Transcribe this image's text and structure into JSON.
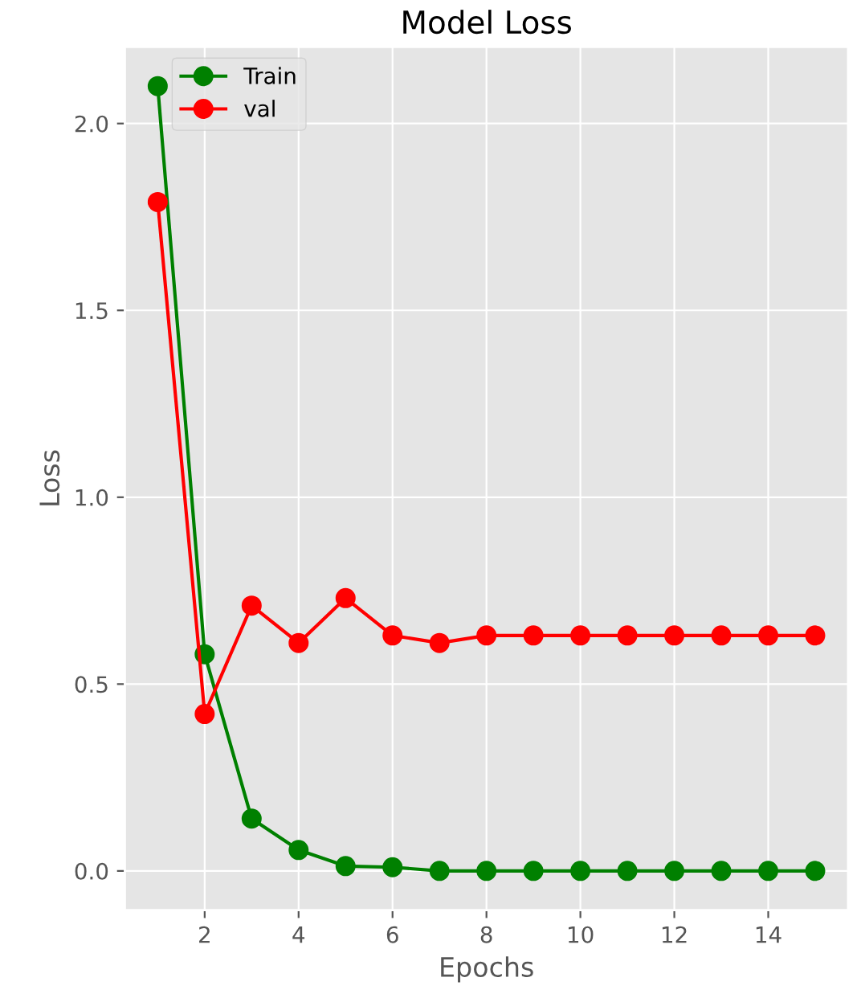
{
  "chart_data": {
    "type": "line",
    "title": "Model Loss",
    "xlabel": "Epochs",
    "ylabel": "Loss",
    "x": [
      1,
      2,
      3,
      4,
      5,
      6,
      7,
      8,
      9,
      10,
      11,
      12,
      13,
      14,
      15
    ],
    "series": [
      {
        "name": "Train",
        "color": "#008000",
        "values": [
          2.1,
          0.58,
          0.14,
          0.056,
          0.013,
          0.01,
          0.0,
          0.0,
          0.0,
          0.0,
          0.0,
          0.0,
          0.0,
          0.0,
          0.0
        ]
      },
      {
        "name": "val",
        "color": "#ff0000",
        "values": [
          1.79,
          0.42,
          0.71,
          0.61,
          0.73,
          0.63,
          0.61,
          0.63,
          0.63,
          0.63,
          0.63,
          0.63,
          0.63,
          0.63,
          0.63
        ]
      }
    ],
    "xlim": [
      0.3,
      15.7
    ],
    "ylim": [
      -0.105,
      2.205
    ],
    "xticks": [
      2,
      4,
      6,
      8,
      10,
      12,
      14
    ],
    "yticks": [
      {
        "value": 0,
        "label": "0.0"
      },
      0.5,
      {
        "value": 1,
        "label": "1.0"
      },
      1.5,
      {
        "value": 2,
        "label": "2.0"
      }
    ],
    "grid": true,
    "legend": "top left",
    "marker": "circle",
    "line_style": "solid"
  }
}
